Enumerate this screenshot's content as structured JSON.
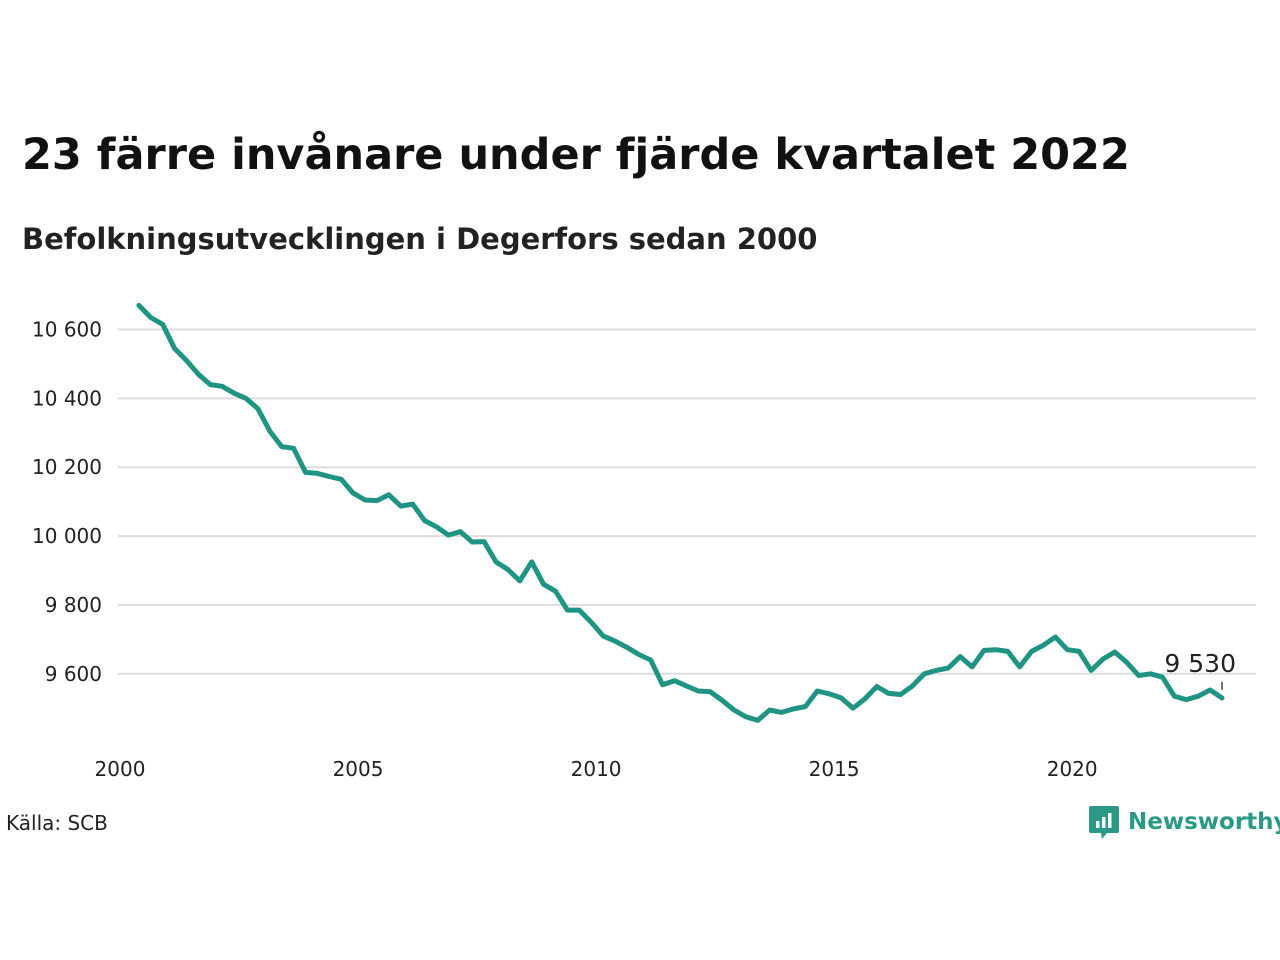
{
  "title": "23 färre invånare under fjärde kvartalet 2022",
  "subtitle": "Befolkningsutvecklingen i Degerfors sedan 2000",
  "source": "Källa: SCB",
  "brand": {
    "name": "Newsworthy",
    "icon": "newsworthy-logo-icon",
    "color": "#2a9a86"
  },
  "colors": {
    "line": "#1f9483",
    "grid": "#dddddd",
    "text": "#111111"
  },
  "chart_data": {
    "type": "line",
    "title": "23 färre invånare under fjärde kvartalet 2022",
    "subtitle": "Befolkningsutvecklingen i Degerfors sedan 2000",
    "xlabel": "",
    "ylabel": "",
    "grid": true,
    "xlim": [
      2000,
      2023
    ],
    "ylim": [
      9460,
      10680
    ],
    "x_ticks": [
      {
        "value": 2000,
        "label": "2000"
      },
      {
        "value": 2005,
        "label": "2005"
      },
      {
        "value": 2010,
        "label": "2010"
      },
      {
        "value": 2015,
        "label": "2015"
      },
      {
        "value": 2020,
        "label": "2020"
      }
    ],
    "y_ticks": [
      {
        "value": 9600,
        "label": "9 600"
      },
      {
        "value": 9800,
        "label": "9 800"
      },
      {
        "value": 10000,
        "label": "10 000"
      },
      {
        "value": 10200,
        "label": "10 200"
      },
      {
        "value": 10400,
        "label": "10 400"
      },
      {
        "value": 10600,
        "label": "10 600"
      }
    ],
    "last_value_label": "9 530",
    "series": [
      {
        "x": [
          2000.25,
          2000.5,
          2000.75,
          2001.0,
          2001.25,
          2001.5,
          2001.75,
          2002.0,
          2002.25,
          2002.5,
          2002.75,
          2003.0,
          2003.25,
          2003.5,
          2003.75,
          2004.0,
          2004.25,
          2004.5,
          2004.75,
          2005.0,
          2005.25,
          2005.5,
          2005.75,
          2006.0,
          2006.25,
          2006.5,
          2006.75,
          2007.0,
          2007.25,
          2007.5,
          2007.75,
          2008.0,
          2008.25,
          2008.5,
          2008.75,
          2009.0,
          2009.25,
          2009.5,
          2009.75,
          2010.0,
          2010.25,
          2010.5,
          2010.75,
          2011.0,
          2011.25,
          2011.5,
          2011.75,
          2012.0,
          2012.25,
          2012.5,
          2012.75,
          2013.0,
          2013.25,
          2013.5,
          2013.75,
          2014.0,
          2014.25,
          2014.5,
          2014.75,
          2015.0,
          2015.25,
          2015.5,
          2015.75,
          2016.0,
          2016.25,
          2016.5,
          2016.75,
          2017.0,
          2017.25,
          2017.5,
          2017.75,
          2018.0,
          2018.25,
          2018.5,
          2018.75,
          2019.0,
          2019.25,
          2019.5,
          2019.75,
          2020.0,
          2020.25,
          2020.5,
          2020.75,
          2021.0,
          2021.25,
          2021.5,
          2021.75,
          2022.0,
          2022.25,
          2022.5,
          2022.75,
          2023.0
        ],
        "values": [
          10670,
          10635,
          10615,
          10545,
          10510,
          10470,
          10440,
          10435,
          10415,
          10400,
          10370,
          10305,
          10260,
          10255,
          10185,
          10182,
          10173,
          10165,
          10125,
          10105,
          10103,
          10120,
          10087,
          10093,
          10045,
          10027,
          10003,
          10013,
          9983,
          9984,
          9925,
          9903,
          9870,
          9925,
          9860,
          9840,
          9785,
          9785,
          9750,
          9710,
          9695,
          9677,
          9656,
          9640,
          9568,
          9580,
          9565,
          9550,
          9548,
          9523,
          9495,
          9475,
          9465,
          9495,
          9488,
          9498,
          9505,
          9550,
          9542,
          9530,
          9500,
          9527,
          9563,
          9543,
          9540,
          9565,
          9600,
          9610,
          9617,
          9650,
          9620,
          9668,
          9670,
          9665,
          9620,
          9665,
          9683,
          9707,
          9670,
          9665,
          9610,
          9643,
          9663,
          9633,
          9595,
          9600,
          9590,
          9535,
          9525,
          9535,
          9553,
          9530
        ]
      }
    ]
  }
}
